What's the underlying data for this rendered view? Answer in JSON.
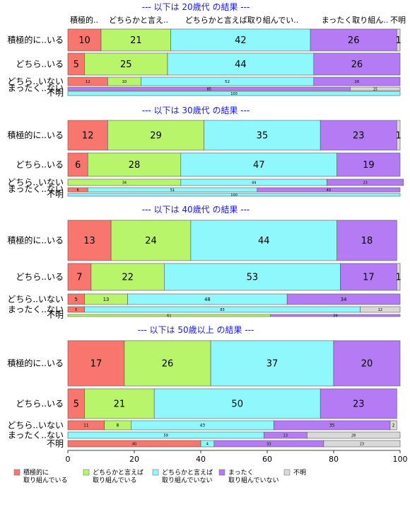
{
  "chart_data": {
    "type": "bar",
    "stacked": "horizontal-100",
    "xlim": [
      0,
      100
    ],
    "xticks": [
      0,
      20,
      40,
      60,
      80,
      100
    ],
    "series": [
      {
        "name": "積極的に取り組んでいる",
        "color": "#f8766d"
      },
      {
        "name": "どちらかと言えば取り組んでいる",
        "color": "#b8f56a"
      },
      {
        "name": "どちらかと言えば取り組んでいない",
        "color": "#8ef8fc"
      },
      {
        "name": "まったく取り組んでいない",
        "color": "#b57bf5"
      },
      {
        "name": "不明",
        "color": "#d9d9d9"
      }
    ],
    "legend": {
      "position": "bottom",
      "items": [
        {
          "line1": "積極的に",
          "line2": "取り組んでいる"
        },
        {
          "line1": "どちらかと言えば",
          "line2": "取り組んでいる"
        },
        {
          "line1": "どちらかと言えば",
          "line2": "取り組んでいない"
        },
        {
          "line1": "まったく",
          "line2": "取り組んでいない"
        },
        {
          "line1": "不明",
          "line2": ""
        }
      ]
    },
    "panels": [
      {
        "title": "--- 以下は 20歳代 の結果 ---",
        "column_labels": [
          "積極的..",
          "どちらかと言え..",
          "どちらかと言えば取り組んでい..",
          "まったく取り組ん..",
          "不明"
        ],
        "rows": [
          {
            "label": "積極的に..いる",
            "values": [
              10,
              21,
              42,
              26,
              1
            ]
          },
          {
            "label": "どちら..いる",
            "values": [
              5,
              25,
              44,
              26,
              0
            ]
          },
          {
            "label": "どちら..いない",
            "values": [
              12,
              10,
              52,
              26,
              0
            ]
          },
          {
            "label": "まったく..ない",
            "values": [
              0,
              0,
              0,
              85,
              15
            ]
          },
          {
            "label": "不明",
            "values": [
              0,
              0,
              100,
              0,
              0
            ]
          }
        ]
      },
      {
        "title": "--- 以下は 30歳代 の結果 ---",
        "column_labels": [],
        "rows": [
          {
            "label": "積極的に..いる",
            "values": [
              12,
              29,
              35,
              23,
              1
            ]
          },
          {
            "label": "どちら..いる",
            "values": [
              6,
              28,
              47,
              19,
              0
            ]
          },
          {
            "label": "どちら..いない",
            "values": [
              0,
              34,
              44,
              23,
              0
            ]
          },
          {
            "label": "まったく..ない",
            "values": [
              6,
              0,
              51,
              43,
              0
            ]
          },
          {
            "label": "不明",
            "values": [
              0,
              0,
              100,
              0,
              0
            ]
          }
        ]
      },
      {
        "title": "--- 以下は 40歳代 の結果 ---",
        "column_labels": [],
        "rows": [
          {
            "label": "積極的に..いる",
            "values": [
              13,
              24,
              44,
              18,
              0
            ]
          },
          {
            "label": "どちら..いる",
            "values": [
              7,
              22,
              53,
              17,
              1
            ]
          },
          {
            "label": "どちら..いない",
            "values": [
              5,
              13,
              48,
              34,
              0
            ]
          },
          {
            "label": "まったく..ない",
            "values": [
              5,
              0,
              83,
              0,
              12
            ]
          },
          {
            "label": "不明",
            "values": [
              0,
              61,
              0,
              39,
              0
            ]
          }
        ]
      },
      {
        "title": "--- 以下は 50歳以上 の結果 ---",
        "column_labels": [],
        "rows": [
          {
            "label": "積極的に..いる",
            "values": [
              17,
              26,
              37,
              20,
              0
            ]
          },
          {
            "label": "どちら..いる",
            "values": [
              5,
              21,
              50,
              23,
              0
            ]
          },
          {
            "label": "どちら..いない",
            "values": [
              11,
              8,
              43,
              35,
              2
            ]
          },
          {
            "label": "まったく..ない",
            "values": [
              0,
              0,
              59,
              13,
              28
            ]
          },
          {
            "label": "不明",
            "values": [
              40,
              0,
              4,
              33,
              23
            ]
          }
        ]
      }
    ]
  }
}
